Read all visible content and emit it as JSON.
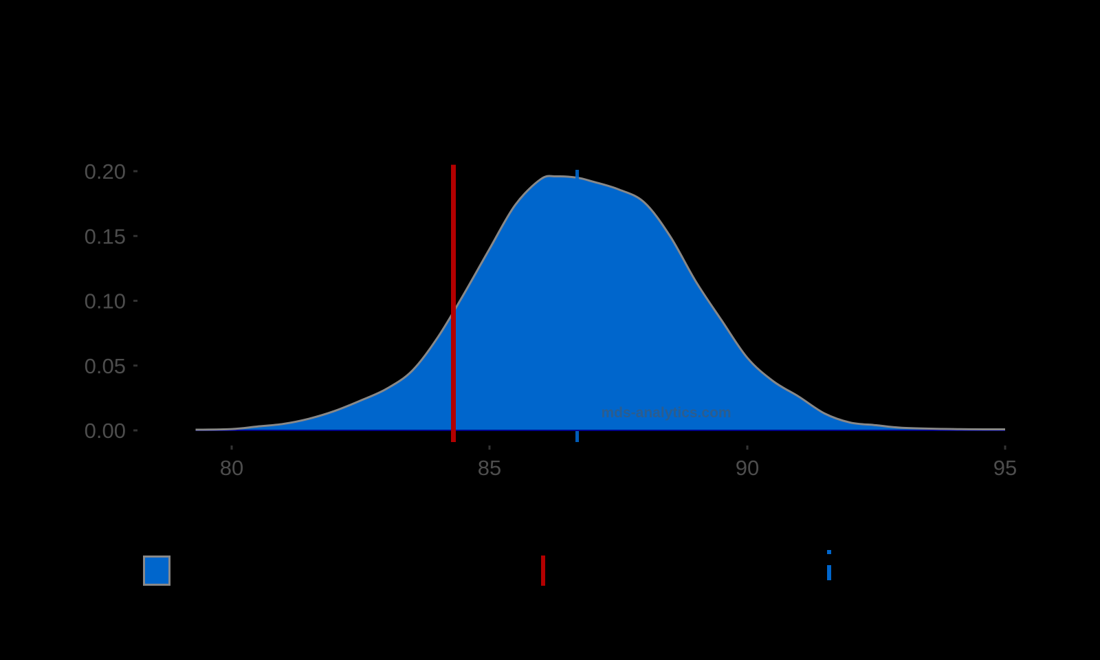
{
  "chart_data": {
    "type": "area",
    "subtype": "density",
    "title": "",
    "xlabel": "",
    "ylabel": "",
    "xlim": [
      79,
      95.2
    ],
    "ylim": [
      0,
      0.205
    ],
    "grid": false,
    "legend_position": "bottom",
    "x_ticks": [
      80,
      85,
      90,
      95
    ],
    "x_tick_labels": [
      "80",
      "85",
      "90",
      "95"
    ],
    "y_ticks": [
      0.0,
      0.05,
      0.1,
      0.15,
      0.2
    ],
    "y_tick_labels": [
      "0.00",
      "0.05",
      "0.10",
      "0.15",
      "0.20"
    ],
    "series": [
      {
        "name": "density",
        "kind": "filled-density",
        "fill_color": "#0066cc",
        "line_color": "#888888",
        "x": [
          79.3,
          80.0,
          80.5,
          81.0,
          81.5,
          82.0,
          82.5,
          83.0,
          83.5,
          84.0,
          84.5,
          85.0,
          85.5,
          86.0,
          86.3,
          86.7,
          87.0,
          87.5,
          88.0,
          88.5,
          89.0,
          89.5,
          90.0,
          90.5,
          91.0,
          91.5,
          92.0,
          92.5,
          93.0,
          94.0,
          95.0
        ],
        "y": [
          0.0005,
          0.001,
          0.003,
          0.005,
          0.009,
          0.015,
          0.023,
          0.032,
          0.046,
          0.072,
          0.105,
          0.14,
          0.174,
          0.194,
          0.196,
          0.195,
          0.192,
          0.186,
          0.176,
          0.15,
          0.115,
          0.085,
          0.056,
          0.038,
          0.026,
          0.013,
          0.006,
          0.004,
          0.002,
          0.001,
          0.0008
        ]
      }
    ],
    "reference_lines": [
      {
        "name": "red-vertical-line",
        "x": 84.3,
        "color": "#b30000",
        "style": "solid",
        "ymax": 0.205
      },
      {
        "name": "blue-dashed-mean-line",
        "x": 86.7,
        "color": "#0066cc",
        "style": "dashed",
        "ymax": 0.2
      }
    ],
    "annotations": [
      {
        "text": "mds-analytics.com",
        "x": 88.5,
        "y": 0.009
      }
    ]
  },
  "watermark": "mds-analytics.com",
  "colors": {
    "background": "#000000",
    "fill": "#0066cc",
    "outline": "#888888",
    "red_line": "#b30000",
    "blue_line": "#0066cc",
    "tick_text": "#4d4d4d"
  },
  "legend": {
    "items": [
      {
        "swatch": "filled-square",
        "color": "#0066cc",
        "label": ""
      },
      {
        "swatch": "solid-vertical-line",
        "color": "#b30000",
        "label": ""
      },
      {
        "swatch": "dashed-vertical-line",
        "color": "#0066cc",
        "label": ""
      }
    ]
  }
}
